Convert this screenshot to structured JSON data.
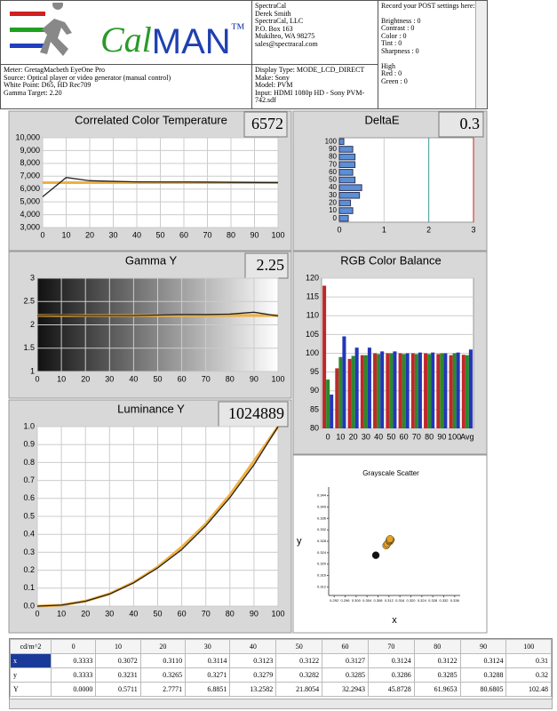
{
  "header": {
    "logo": {
      "part1": "Cal",
      "part2": "MAN",
      "mark": "™"
    },
    "address": [
      "SpectraCal",
      "Derek Smith",
      "SpectraCal, LLC",
      "P.O. Box 163",
      "Mukilteo, WA 98275",
      "sales@spectracal.com"
    ],
    "settings": [
      "Record your POST settings here:",
      "Brightness : 0",
      "Contrast : 0",
      "Color : 0",
      "Tint : 0",
      "Sharpness : 0",
      "High",
      "Red : 0",
      "Green : 0"
    ],
    "meter_info": [
      "Meter: GretagMacbeth EyeOne Pro",
      "Source: Optical player or video generator (manual control)",
      "White Point: D65, HD Rec709",
      "Gamma Target: 2.20"
    ],
    "display_info": [
      "Display Type: MODE_LCD_DIRECT",
      "Make: Sony",
      "Model: PVM",
      "Input: HDMI 1080p HD   -   Sony PVM-742.sdf"
    ]
  },
  "chart_data": [
    {
      "type": "line",
      "title": "Correlated Color Temperature",
      "readout": 6572,
      "x": [
        0,
        10,
        20,
        30,
        40,
        50,
        60,
        70,
        80,
        90,
        100
      ],
      "series": [
        {
          "color": "#f0b040",
          "values": [
            6500,
            6500,
            6500,
            6500,
            6500,
            6500,
            6500,
            6500,
            6500,
            6500,
            6500
          ]
        },
        {
          "color": "#222222",
          "values": [
            5400,
            6900,
            6650,
            6600,
            6560,
            6550,
            6550,
            6540,
            6520,
            6510,
            6500
          ]
        }
      ],
      "xlim": [
        0,
        100
      ],
      "xticks": [
        0,
        10,
        20,
        30,
        40,
        50,
        60,
        70,
        80,
        90,
        100
      ],
      "ylim": [
        3000,
        10000
      ],
      "yticks": [
        {
          "value": 3000,
          "label": "3,000"
        },
        {
          "value": 4000,
          "label": "4,000"
        },
        {
          "value": 5000,
          "label": "5,000"
        },
        {
          "value": 6000,
          "label": "6,000"
        },
        {
          "value": 7000,
          "label": "7,000"
        },
        {
          "value": 8000,
          "label": "8,000"
        },
        {
          "value": 9000,
          "label": "9,000"
        },
        {
          "value": 10000,
          "label": "10,000"
        }
      ]
    },
    {
      "type": "hbar",
      "title": "DeltaE",
      "readout": 0.3,
      "categories": [
        "0",
        "10",
        "20",
        "30",
        "40",
        "50",
        "60",
        "70",
        "80",
        "90",
        "100"
      ],
      "color": "#5b8fd6",
      "values": [
        0.2,
        0.3,
        0.25,
        0.45,
        0.5,
        0.35,
        0.3,
        0.35,
        0.35,
        0.3,
        0.1
      ],
      "xlim": [
        0,
        3
      ],
      "xticks": [
        0,
        1,
        2,
        3
      ]
    },
    {
      "type": "line",
      "title": "Gamma Y",
      "readout": 2.25,
      "x": [
        0,
        10,
        20,
        30,
        40,
        50,
        60,
        70,
        80,
        90,
        100
      ],
      "series": [
        {
          "color": "#f0b040",
          "values": [
            2.2,
            2.2,
            2.2,
            2.2,
            2.2,
            2.2,
            2.2,
            2.2,
            2.2,
            2.2,
            2.2
          ]
        },
        {
          "color": "#222222",
          "values": [
            2.2,
            2.21,
            2.2,
            2.2,
            2.2,
            2.21,
            2.22,
            2.22,
            2.23,
            2.27,
            2.19
          ]
        }
      ],
      "xlim": [
        0,
        100
      ],
      "xticks": [
        0,
        10,
        20,
        30,
        40,
        50,
        60,
        70,
        80,
        90,
        100
      ],
      "ylim": [
        1,
        3
      ],
      "yticks": [
        1,
        1.5,
        2,
        2.5,
        3
      ]
    },
    {
      "type": "bar",
      "title": "RGB Color Balance",
      "categories": [
        "0",
        "10",
        "20",
        "30",
        "40",
        "50",
        "60",
        "70",
        "80",
        "90",
        "100",
        "Avg"
      ],
      "series": [
        {
          "color": "#c0282a",
          "values": [
            118,
            96,
            98.5,
            99.5,
            100,
            100,
            100,
            100,
            100,
            99.8,
            99.5,
            99.6
          ]
        },
        {
          "color": "#2a8a2a",
          "values": [
            93,
            99,
            99.3,
            99.5,
            99.8,
            100,
            99.8,
            99.8,
            99.8,
            100,
            100,
            99.5
          ]
        },
        {
          "color": "#2436b8",
          "values": [
            89,
            104.5,
            101.5,
            101.5,
            100.5,
            100.5,
            100,
            100.2,
            100.2,
            100,
            100.2,
            101
          ]
        }
      ],
      "ylim": [
        80,
        120
      ],
      "yticks": [
        80,
        85,
        90,
        95,
        100,
        105,
        110,
        115,
        120
      ]
    },
    {
      "type": "line",
      "title": "Luminance Y",
      "readout": 1024889,
      "x": [
        0,
        10,
        20,
        30,
        40,
        50,
        60,
        70,
        80,
        90,
        100
      ],
      "series": [
        {
          "color": "#f0b040",
          "values": [
            0,
            0.0057,
            0.0278,
            0.0689,
            0.1326,
            0.2181,
            0.3294,
            0.4588,
            0.6197,
            0.8081,
            1
          ]
        },
        {
          "color": "#222222",
          "values": [
            0,
            0.0056,
            0.0271,
            0.0672,
            0.1294,
            0.2128,
            0.3151,
            0.4476,
            0.6047,
            0.7873,
            1
          ]
        }
      ],
      "xlim": [
        0,
        100
      ],
      "xticks": [
        0,
        10,
        20,
        30,
        40,
        50,
        60,
        70,
        80,
        90,
        100
      ],
      "ylim": [
        0,
        1
      ],
      "yticks": [
        {
          "value": 0,
          "label": "0.0"
        },
        0.1,
        0.2,
        0.3,
        0.4,
        0.5,
        0.6,
        0.7,
        0.8,
        0.9,
        {
          "value": 1,
          "label": "1.0"
        }
      ]
    },
    {
      "type": "scatter",
      "title": "Grayscale Scatter",
      "xlabel": "x",
      "ylabel": "y",
      "series": [
        {
          "color": "#111111",
          "x": [
            0.3072
          ],
          "y": [
            0.3231
          ]
        },
        {
          "color": "#e8a020",
          "x": [
            0.311,
            0.3114,
            0.3123,
            0.3122,
            0.3127,
            0.3124,
            0.3122,
            0.3124
          ],
          "y": [
            0.3265,
            0.3271,
            0.3279,
            0.3282,
            0.3285,
            0.3286,
            0.3285,
            0.3288
          ]
        }
      ],
      "xlim": [
        0.29,
        0.338
      ],
      "xticks": [
        0.292,
        0.296,
        {
          "value": 0.3,
          "label": "0.300"
        },
        0.304,
        0.308,
        0.312,
        0.316,
        {
          "value": 0.32,
          "label": "0.320"
        },
        0.324,
        0.328,
        0.332,
        0.336
      ],
      "ylim": [
        0.309,
        0.347
      ],
      "yticks": [
        0.312,
        0.316,
        {
          "value": 0.32,
          "label": "0.320"
        },
        0.324,
        0.328,
        0.332,
        0.336,
        {
          "value": 0.34,
          "label": "0.340"
        },
        0.344
      ]
    }
  ],
  "table": {
    "header": [
      "cd/m^2",
      "0",
      "10",
      "20",
      "30",
      "40",
      "50",
      "60",
      "70",
      "80",
      "90",
      "100"
    ],
    "rows": [
      [
        "x",
        "0.3333",
        "0.3072",
        "0.3110",
        "0.3114",
        "0.3123",
        "0.3122",
        "0.3127",
        "0.3124",
        "0.3122",
        "0.3124",
        "0.31"
      ],
      [
        "y",
        "0.3333",
        "0.3231",
        "0.3265",
        "0.3271",
        "0.3279",
        "0.3282",
        "0.3285",
        "0.3286",
        "0.3285",
        "0.3288",
        "0.32"
      ],
      [
        "Y",
        "0.0000",
        "0.5711",
        "2.7771",
        "6.8851",
        "13.2582",
        "21.8054",
        "32.2943",
        "45.8728",
        "61.9653",
        "80.6805",
        "102.48"
      ]
    ]
  }
}
